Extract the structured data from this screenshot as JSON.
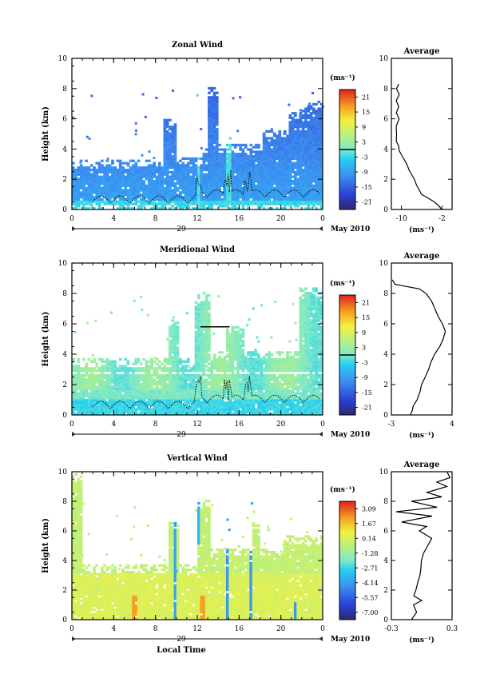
{
  "chart_data": [
    {
      "type": "heatmap",
      "title": "Zonal Wind",
      "xlabel": "",
      "ylabel": "Height (km)",
      "x_ticks": [
        "0",
        "4",
        "8",
        "12",
        "16",
        "20",
        "0"
      ],
      "xlim": [
        0,
        24
      ],
      "y_ticks": [
        "0",
        "2",
        "4",
        "6",
        "8",
        "10"
      ],
      "ylim": [
        0,
        10
      ],
      "day_label": "29",
      "month_label": "May 2010",
      "colorbar": {
        "unit": "(ms⁻¹)",
        "ticks": [
          "21",
          "15",
          "9",
          "3",
          "-3",
          "-9",
          "-15",
          "-21"
        ],
        "range": [
          -24,
          24
        ],
        "zero_line": 0
      },
      "field": {
        "value_columns": [
          [
            0,
            0.2,
            -9
          ],
          [
            0.2,
            1,
            -12
          ],
          [
            1,
            3.2,
            -13
          ],
          [
            3.2,
            4.5,
            -12
          ],
          [
            4.5,
            4.9,
            -14
          ]
        ],
        "note_regions": []
      },
      "profile": {
        "title": "Average",
        "xlim": [
          -12,
          0
        ],
        "x_ticks": [
          "-10",
          "-2"
        ],
        "x_tick_values": [
          -10,
          -2
        ],
        "unit": "(ms⁻¹)",
        "y": [
          0,
          0.2,
          0.5,
          0.8,
          1,
          1.3,
          1.6,
          2,
          2.3,
          2.6,
          3,
          3.3,
          3.6,
          3.9,
          4.2,
          4.5,
          5,
          5.5,
          6,
          6.4,
          6.8,
          7.2,
          7.6,
          8,
          8.3
        ],
        "x": [
          -2,
          -2.5,
          -3.5,
          -5,
          -6,
          -6.5,
          -7,
          -7.5,
          -8,
          -8.5,
          -9,
          -9.5,
          -10,
          -10.5,
          -10.5,
          -11,
          -11,
          -11,
          -10.5,
          -11,
          -10.5,
          -11,
          -10.5,
          -11,
          -10.5
        ]
      }
    },
    {
      "type": "heatmap",
      "title": "Meridional Wind",
      "xlabel": "",
      "ylabel": "Height (km)",
      "x_ticks": [
        "0",
        "4",
        "8",
        "12",
        "16",
        "20",
        "0"
      ],
      "xlim": [
        0,
        24
      ],
      "y_ticks": [
        "0",
        "2",
        "4",
        "6",
        "8",
        "10"
      ],
      "ylim": [
        0,
        10
      ],
      "day_label": "29",
      "month_label": "May 2010",
      "colorbar": {
        "unit": "(ms⁻¹)",
        "ticks": [
          "21",
          "15",
          "9",
          "3",
          "-3",
          "-9",
          "-15",
          "-21"
        ],
        "range": [
          -24,
          24
        ],
        "zero_line": 0
      },
      "profile": {
        "title": "Average",
        "xlim": [
          -3,
          4
        ],
        "x_ticks": [
          "-3",
          "4"
        ],
        "x_tick_values": [
          -3,
          4
        ],
        "unit": "(ms⁻¹)",
        "y": [
          0,
          0.3,
          0.6,
          1,
          1.5,
          2,
          2.5,
          3,
          3.5,
          4,
          4.5,
          5,
          5.5,
          6,
          6.5,
          7,
          7.5,
          8,
          8.3,
          8.6,
          8.9
        ],
        "x": [
          -0.8,
          -0.6,
          -0.5,
          0,
          0.3,
          0.5,
          0.9,
          1.3,
          1.6,
          2,
          2.6,
          3,
          3.2,
          2.9,
          2.4,
          2.0,
          1.6,
          1.0,
          0.2,
          -2.6,
          -2.9
        ]
      }
    },
    {
      "type": "heatmap",
      "title": "Vertical Wind",
      "xlabel": "Local Time",
      "ylabel": "Height (km)",
      "x_ticks": [
        "0",
        "4",
        "8",
        "12",
        "16",
        "20",
        "0"
      ],
      "xlim": [
        0,
        24
      ],
      "y_ticks": [
        "0",
        "2",
        "4",
        "6",
        "8",
        "10"
      ],
      "ylim": [
        0,
        10
      ],
      "day_label": "29",
      "month_label": "May 2010",
      "colorbar": {
        "unit": "(ms⁻¹)",
        "ticks": [
          "3.09",
          "1.67",
          "0.14",
          "-1.28",
          "-2.71",
          "-4.14",
          "-5.57",
          "-7.00"
        ],
        "range": [
          -8.4,
          4.5
        ]
      },
      "profile": {
        "title": "Average",
        "xlim": [
          -0.3,
          0.3
        ],
        "x_ticks": [
          "-0.3",
          "0.3"
        ],
        "x_tick_values": [
          -0.3,
          0.3
        ],
        "unit": "(ms⁻¹)",
        "y": [
          0,
          0.5,
          1,
          1.3,
          1.6,
          2,
          2.5,
          3,
          3.5,
          4,
          4.5,
          5,
          5.5,
          6,
          6.3,
          6.6,
          7,
          7.3,
          7.6,
          8,
          8.3,
          8.6,
          9,
          9.3,
          9.6,
          10
        ],
        "x": [
          -0.1,
          -0.05,
          -0.08,
          0,
          -0.08,
          -0.06,
          -0.04,
          -0.02,
          -0.01,
          0,
          0.02,
          0.06,
          0.1,
          -0.02,
          0.05,
          -0.2,
          0.1,
          -0.25,
          0.15,
          -0.1,
          0.2,
          0.05,
          0.25,
          0.15,
          0.28,
          0.25
        ]
      }
    }
  ]
}
